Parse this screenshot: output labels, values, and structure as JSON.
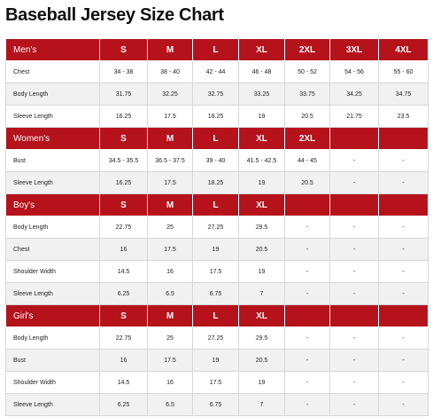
{
  "title": "Baseball Jersey Size Chart",
  "sections": [
    {
      "name": "Men's",
      "sizes": [
        "S",
        "M",
        "L",
        "XL",
        "2XL",
        "3XL",
        "4XL"
      ],
      "rows": [
        {
          "label": "Chest",
          "values": [
            "34 - 38",
            "38 - 40",
            "42 - 44",
            "46 - 48",
            "50 - 52",
            "54 - 56",
            "55 - 60"
          ]
        },
        {
          "label": "Body Length",
          "values": [
            "31.75",
            "32.25",
            "32.75",
            "33.25",
            "33.75",
            "34.25",
            "34.75"
          ]
        },
        {
          "label": "Sleeve Length",
          "values": [
            "16.25",
            "17.5",
            "18.25",
            "19",
            "20.5",
            "21.75",
            "23.5"
          ]
        }
      ]
    },
    {
      "name": "Women's",
      "sizes": [
        "S",
        "M",
        "L",
        "XL",
        "2XL",
        "",
        ""
      ],
      "rows": [
        {
          "label": "Bust",
          "values": [
            "34.5 - 35.5",
            "36.5 - 37.5",
            "39 - 40",
            "41.5 - 42.5",
            "44 - 45",
            "-",
            "-"
          ]
        },
        {
          "label": "Sleeve Length",
          "values": [
            "16.25",
            "17.5",
            "18.25",
            "19",
            "20.5",
            "-",
            "-"
          ]
        }
      ]
    },
    {
      "name": "Boy's",
      "sizes": [
        "S",
        "M",
        "L",
        "XL",
        "",
        "",
        ""
      ],
      "rows": [
        {
          "label": "Body Length",
          "values": [
            "22.75",
            "25",
            "27.25",
            "29.5",
            "-",
            "-",
            "-"
          ]
        },
        {
          "label": "Chest",
          "values": [
            "16",
            "17.5",
            "19",
            "20.5",
            "-",
            "-",
            "-"
          ]
        },
        {
          "label": "Shoulder Width",
          "values": [
            "14.5",
            "16",
            "17.5",
            "19",
            "-",
            "-",
            "-"
          ]
        },
        {
          "label": "Sleeve Length",
          "values": [
            "6.25",
            "6.5",
            "6.75",
            "7",
            "-",
            "-",
            "-"
          ]
        }
      ]
    },
    {
      "name": "Girl's",
      "sizes": [
        "S",
        "M",
        "L",
        "XL",
        "",
        "",
        ""
      ],
      "rows": [
        {
          "label": "Body Length",
          "values": [
            "22.75",
            "25",
            "27.25",
            "29.5",
            "-",
            "-",
            "-"
          ]
        },
        {
          "label": "Bust",
          "values": [
            "16",
            "17.5",
            "19",
            "20.5",
            "-",
            "-",
            "-"
          ]
        },
        {
          "label": "Shoulder Width",
          "values": [
            "14.5",
            "16",
            "17.5",
            "19",
            "-",
            "-",
            "-"
          ]
        },
        {
          "label": "Sleeve Length",
          "values": [
            "6.25",
            "6.5",
            "6.75",
            "7",
            "-",
            "-",
            "-"
          ]
        }
      ]
    }
  ],
  "colors": {
    "header_bg": "#b5121b",
    "header_text": "#ffffff",
    "row_alt_bg": "#f1f1f1"
  }
}
